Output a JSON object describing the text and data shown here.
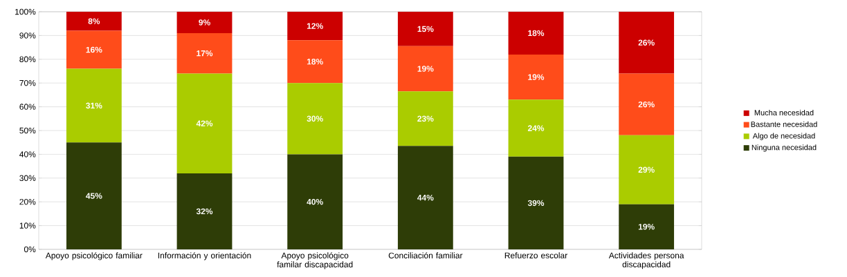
{
  "chart_data": {
    "type": "bar",
    "stacked": true,
    "categories": [
      "Apoyo psicológico familiar",
      "Información y orientación",
      "Apoyo psicológico familar discapacidad",
      "Conciliación familiar",
      "Refuerzo escolar",
      "Actividades persona discapacidad"
    ],
    "series": [
      {
        "name": "Ninguna necesidad",
        "color": "#2e3d07",
        "values": [
          45,
          32,
          40,
          43.5,
          39,
          19
        ],
        "value_labels": [
          "45%",
          "32%",
          "40%",
          "44%",
          "39%",
          "19%"
        ]
      },
      {
        "name": "Algo de necesidad",
        "color": "#aacc00",
        "values": [
          31,
          42,
          30,
          23,
          24,
          29
        ],
        "value_labels": [
          "31%",
          "42%",
          "30%",
          "23%",
          "24%",
          "29%"
        ]
      },
      {
        "name": "Bastante necesidad",
        "color": "#ff4c1a",
        "values": [
          16,
          17,
          18,
          19,
          19,
          26
        ],
        "value_labels": [
          "16%",
          "17%",
          "18%",
          "19%",
          "19%",
          "26%"
        ]
      },
      {
        "name": "Mucha necesidad",
        "color": "#cc0000",
        "values": [
          8,
          9,
          12,
          14.5,
          18,
          26
        ],
        "value_labels": [
          "8%",
          "9%",
          "12%",
          "15%",
          "18%",
          "26%"
        ]
      }
    ],
    "ylim": [
      0,
      100
    ],
    "yticks": [
      {
        "value": 0,
        "label": "0%"
      },
      {
        "value": 10,
        "label": "10%"
      },
      {
        "value": 20,
        "label": "20%"
      },
      {
        "value": 30,
        "label": "30%"
      },
      {
        "value": 40,
        "label": "40%"
      },
      {
        "value": 50,
        "label": "50%"
      },
      {
        "value": 60,
        "label": "60%"
      },
      {
        "value": 70,
        "label": "70%"
      },
      {
        "value": 80,
        "label": "80%"
      },
      {
        "value": 90,
        "label": "90%"
      },
      {
        "value": 100,
        "label": "100%"
      }
    ],
    "grid": "y",
    "legend": "right"
  }
}
